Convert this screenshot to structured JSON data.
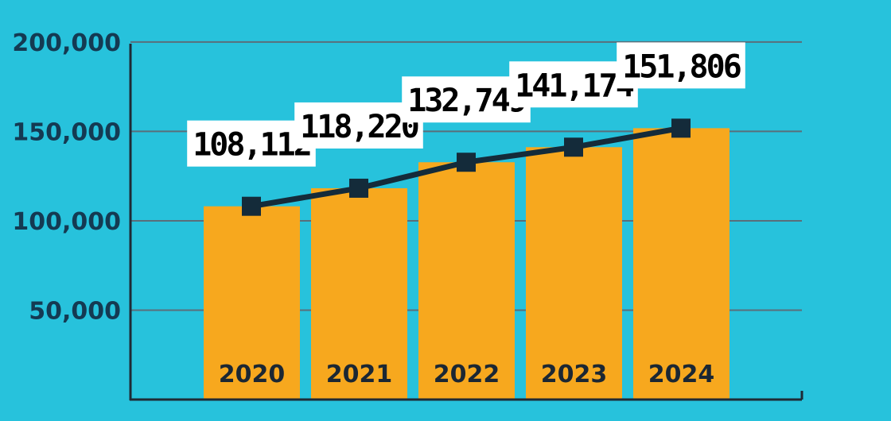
{
  "chart_data": {
    "type": "bar",
    "categories": [
      "2020",
      "2021",
      "2022",
      "2023",
      "2024"
    ],
    "values": [
      108112,
      118220,
      132749,
      141174,
      151806
    ],
    "data_labels": [
      "108,112",
      "118,220",
      "132,749",
      "141,174",
      "151,806"
    ],
    "line_overlay": true,
    "y_ticks": [
      "50,000",
      "100,000",
      "150,000",
      "200,000"
    ],
    "y_tick_values": [
      50000,
      100000,
      150000,
      200000
    ],
    "ylim": [
      0,
      200000
    ],
    "grid": true,
    "colors": {
      "background": "#27c2dc",
      "bar": "#f7a81e",
      "line": "#142b3a",
      "grid": "#5a6e7a",
      "axis": "#1e2a35"
    }
  }
}
